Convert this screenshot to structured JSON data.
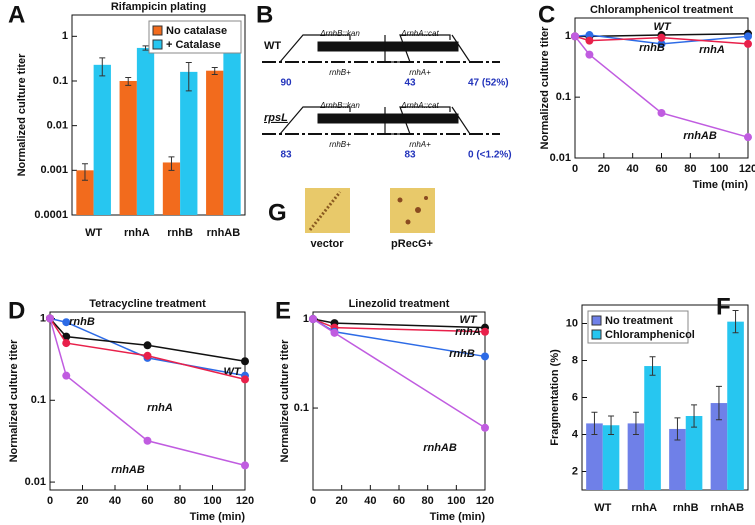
{
  "panel_labels": [
    "A",
    "B",
    "C",
    "D",
    "E",
    "F",
    "G"
  ],
  "chart_data": [
    {
      "type": "bar",
      "title": "Rifampicin plating",
      "ylabel": "Normalized culture titer",
      "categories": [
        "WT",
        "rnhA",
        "rnhB",
        "rnhAB"
      ],
      "log_y": true,
      "ylim": [
        0.0001,
        3
      ],
      "yticks": [
        0.0001,
        0.001,
        0.01,
        0.1,
        1
      ],
      "legend": "upper right",
      "series": [
        {
          "name": "No catalase",
          "color": "#f26b1d",
          "values": [
            0.001,
            0.1,
            0.0015,
            0.17
          ],
          "errors": [
            0.0004,
            0.02,
            0.0005,
            0.03
          ]
        },
        {
          "name": "+ Catalase",
          "color": "#27c6f0",
          "values": [
            0.23,
            0.55,
            0.16,
            0.6
          ],
          "errors": [
            0.1,
            0.06,
            0.1,
            0.12
          ]
        }
      ]
    },
    {
      "type": "line",
      "title": "Chloramphenicol treatment",
      "xlabel": "Time (min)",
      "ylabel": "Normalized culture titer",
      "x": [
        0,
        10,
        60,
        120
      ],
      "xlim": [
        0,
        120
      ],
      "xticks": [
        0,
        20,
        40,
        60,
        80,
        100,
        120
      ],
      "log_y": true,
      "ylim": [
        0.01,
        2
      ],
      "yticks": [
        0.01,
        0.1,
        1
      ],
      "series": [
        {
          "name": "WT",
          "color": "#111111",
          "values": [
            1,
            1,
            1.05,
            1.1
          ]
        },
        {
          "name": "rnhB",
          "color": "#2d6be6",
          "values": [
            1,
            1.05,
            0.75,
            1
          ]
        },
        {
          "name": "rnhA",
          "color": "#e8204a",
          "values": [
            1,
            0.85,
            0.95,
            0.75
          ]
        },
        {
          "name": "rnhAB",
          "color": "#c05ce0",
          "values": [
            1,
            0.5,
            0.055,
            0.022
          ]
        }
      ]
    },
    {
      "type": "line",
      "title": "Tetracycline treatment",
      "xlabel": "Time (min)",
      "ylabel": "Normalized culture titer",
      "x": [
        0,
        10,
        60,
        120
      ],
      "xlim": [
        0,
        120
      ],
      "xticks": [
        0,
        20,
        40,
        60,
        80,
        100,
        120
      ],
      "log_y": true,
      "ylim": [
        0.008,
        1.2
      ],
      "yticks": [
        0.01,
        0.1,
        1
      ],
      "series": [
        {
          "name": "rnhB",
          "color": "#2d6be6",
          "values": [
            1,
            0.9,
            0.33,
            0.2
          ]
        },
        {
          "name": "WT",
          "color": "#111111",
          "values": [
            1,
            0.6,
            0.47,
            0.3
          ]
        },
        {
          "name": "rnhA",
          "color": "#e8204a",
          "values": [
            1,
            0.5,
            0.35,
            0.18
          ]
        },
        {
          "name": "rnhAB",
          "color": "#c05ce0",
          "values": [
            1,
            0.2,
            0.032,
            0.016
          ]
        }
      ]
    },
    {
      "type": "line",
      "title": "Linezolid treatment",
      "xlabel": "Time (min)",
      "ylabel": "Normalized culture titer",
      "x": [
        0,
        15,
        120
      ],
      "xlim": [
        0,
        120
      ],
      "xticks": [
        0,
        20,
        40,
        60,
        80,
        100,
        120
      ],
      "log_y": true,
      "ylim": [
        0.012,
        1.2
      ],
      "yticks": [
        0.1,
        1
      ],
      "series": [
        {
          "name": "WT",
          "color": "#111111",
          "values": [
            1,
            0.9,
            0.8
          ]
        },
        {
          "name": "rnhA",
          "color": "#e8204a",
          "values": [
            1,
            0.8,
            0.72
          ]
        },
        {
          "name": "rnhB",
          "color": "#2d6be6",
          "values": [
            1,
            0.72,
            0.38
          ]
        },
        {
          "name": "rnhAB",
          "color": "#c05ce0",
          "values": [
            1,
            0.7,
            0.06
          ]
        }
      ]
    },
    {
      "type": "bar",
      "ylabel": "Fragmentation (%)",
      "categories": [
        "WT",
        "rnhA",
        "rnhB",
        "rnhAB"
      ],
      "ylim": [
        1,
        11
      ],
      "yticks": [
        2,
        4,
        6,
        8,
        10
      ],
      "legend": "upper left",
      "series": [
        {
          "name": "No treatment",
          "color": "#6f80e8",
          "values": [
            4.6,
            4.6,
            4.3,
            5.7
          ],
          "errors": [
            0.6,
            0.6,
            0.6,
            0.9
          ]
        },
        {
          "name": "Chloramphenicol",
          "color": "#27c6f0",
          "values": [
            4.5,
            7.7,
            5.0,
            10.1
          ],
          "errors": [
            0.5,
            0.5,
            0.6,
            0.6
          ]
        }
      ]
    }
  ],
  "diagram": {
    "rows": [
      {
        "strain": "WT",
        "cassettes": [
          "ΔrnhB::kan",
          "ΔrnhA::cat"
        ],
        "genes": [
          "rnhB+",
          "rnhA+"
        ],
        "counts": [
          "90",
          "43",
          "47 (52%)"
        ]
      },
      {
        "strain": "rpsL",
        "cassettes": [
          "ΔrnhB::kan",
          "ΔrnhA::cat"
        ],
        "genes": [
          "rnhB+",
          "rnhA+"
        ],
        "counts": [
          "83",
          "83",
          "0 (<1.2%)"
        ]
      }
    ]
  },
  "images": {
    "labels": [
      "vector",
      "pRecG+"
    ]
  }
}
